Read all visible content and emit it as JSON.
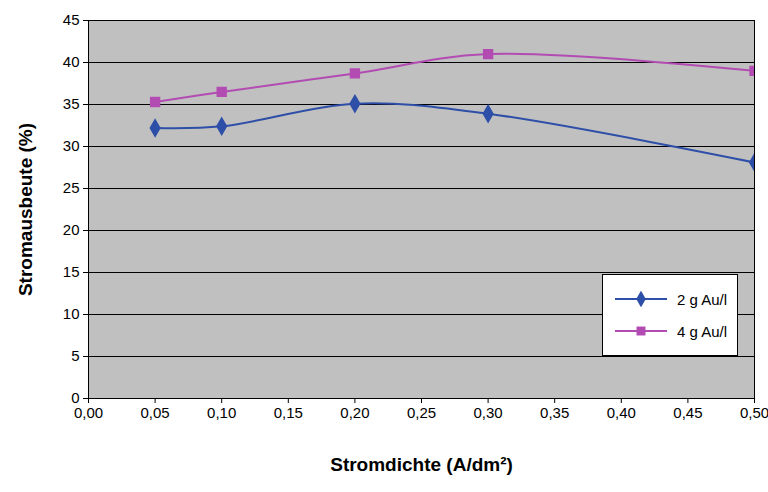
{
  "chart_data": {
    "type": "line",
    "x": [
      0.05,
      0.1,
      0.2,
      0.3,
      0.5
    ],
    "series": [
      {
        "name": "2 g Au/l",
        "color": "#2e4fa8",
        "marker": "diamond",
        "line_style": "solid",
        "values": [
          32.2,
          32.4,
          35.1,
          33.9,
          28.1
        ]
      },
      {
        "name": "4 g Au/l",
        "color": "#b24cb2",
        "marker": "square",
        "line_style": "solid",
        "values": [
          35.3,
          36.5,
          38.7,
          41.0,
          39.0
        ]
      }
    ],
    "x_label": "Stromdichte (A/dm²)",
    "y_label": "Stromausbeute (%)",
    "xlim": [
      0,
      0.5
    ],
    "xticks": [
      {
        "value": 0,
        "label": "0,00"
      },
      {
        "value": 0.05,
        "label": "0,05"
      },
      {
        "value": 0.1,
        "label": "0,10"
      },
      {
        "value": 0.15,
        "label": "0,15"
      },
      {
        "value": 0.2,
        "label": "0,20"
      },
      {
        "value": 0.25,
        "label": "0,25"
      },
      {
        "value": 0.3,
        "label": "0,30"
      },
      {
        "value": 0.35,
        "label": "0,35"
      },
      {
        "value": 0.4,
        "label": "0,40"
      },
      {
        "value": 0.45,
        "label": "0,45"
      },
      {
        "value": 0.5,
        "label": "0,50"
      }
    ],
    "ylim": [
      0,
      45
    ],
    "yticks": [
      0,
      5,
      10,
      15,
      20,
      25,
      30,
      35,
      40,
      45
    ],
    "grid": true,
    "legend": "lower right"
  }
}
